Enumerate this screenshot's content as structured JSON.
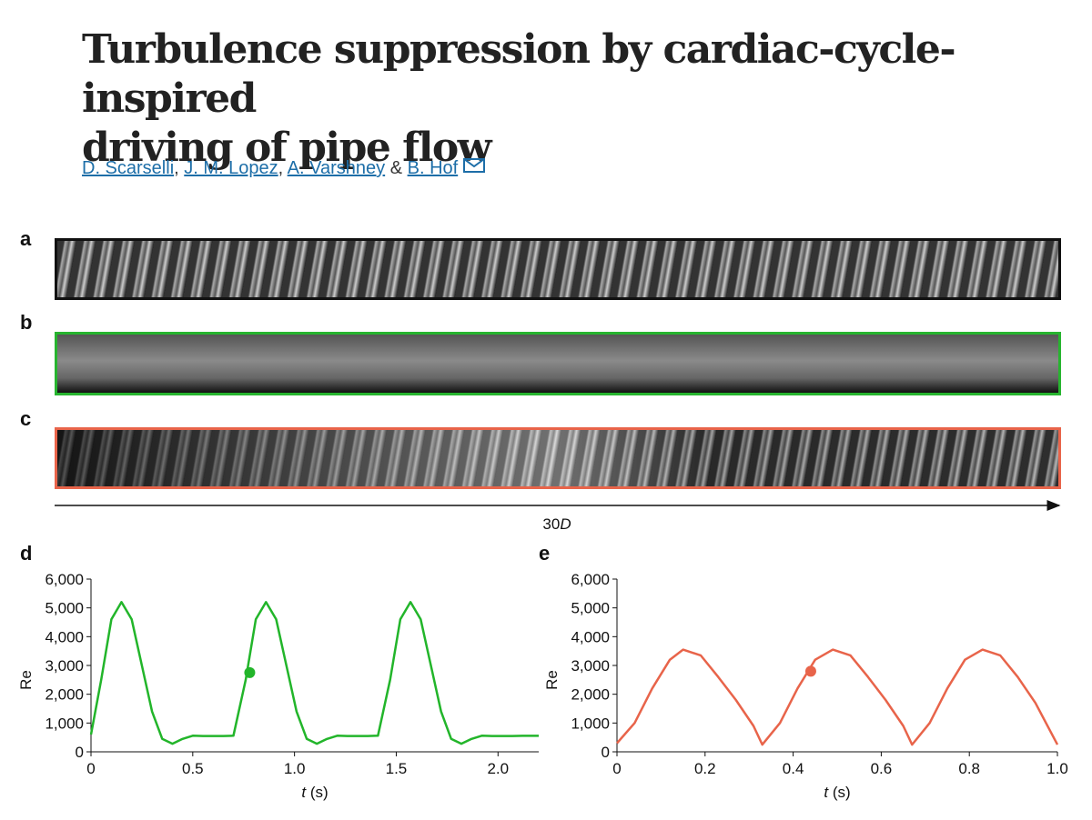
{
  "header": {
    "title_lines": [
      "Turbulence suppression by cardiac-cycle-inspired",
      "driving of pipe flow"
    ],
    "authors": [
      "D. Scarselli",
      "J. M. Lopez",
      "A. Varshney",
      "B. Hof"
    ],
    "separator": ",",
    "conjunction": "&"
  },
  "panels": [
    {
      "label": "a"
    },
    {
      "label": "b"
    },
    {
      "label": "c"
    }
  ],
  "scale_label": {
    "number": "30",
    "unit": "D"
  },
  "chart_data": [
    {
      "type": "line",
      "panel_label": "d",
      "ylabel": "Re",
      "xlabel": {
        "var": "t",
        "unit": "(s)"
      },
      "color": "#22b52a",
      "xlim": [
        0,
        2.2
      ],
      "xticks": [
        0,
        0.5,
        {
          "value": 1,
          "label": "1.0"
        },
        1.5,
        {
          "value": 2,
          "label": "2.0"
        }
      ],
      "ylim": [
        0,
        6000
      ],
      "yticks": [
        0,
        {
          "value": 1000,
          "label": "1,000"
        },
        {
          "value": 2000,
          "label": "2,000"
        },
        {
          "value": 3000,
          "label": "3,000"
        },
        {
          "value": 4000,
          "label": "4,000"
        },
        {
          "value": 5000,
          "label": "5,000"
        },
        {
          "value": 6000,
          "label": "6,000"
        }
      ],
      "x": [
        0,
        0.05,
        0.1,
        0.15,
        0.2,
        0.25,
        0.3,
        0.35,
        0.4,
        0.45,
        0.5,
        0.55,
        0.6,
        0.65,
        0.7,
        0.76,
        0.81,
        0.86,
        0.91,
        0.96,
        1.01,
        1.06,
        1.11,
        1.16,
        1.21,
        1.26,
        1.31,
        1.36,
        1.41,
        1.47,
        1.52,
        1.57,
        1.62,
        1.67,
        1.72,
        1.77,
        1.82,
        1.87,
        1.92,
        1.97,
        2.02,
        2.07,
        2.12,
        2.2
      ],
      "values": [
        600,
        2500,
        4600,
        5200,
        4600,
        3000,
        1400,
        450,
        280,
        450,
        560,
        550,
        550,
        550,
        560,
        2500,
        4600,
        5200,
        4600,
        3000,
        1400,
        450,
        280,
        450,
        560,
        550,
        550,
        550,
        560,
        2500,
        4600,
        5200,
        4600,
        3000,
        1400,
        450,
        280,
        450,
        560,
        550,
        550,
        550,
        555,
        555
      ],
      "marker": {
        "x": 0.78,
        "y": 2750
      }
    },
    {
      "type": "line",
      "panel_label": "e",
      "ylabel": "Re",
      "xlabel": {
        "var": "t",
        "unit": "(s)"
      },
      "color": "#e8644a",
      "xlim": [
        0,
        1
      ],
      "xticks": [
        0,
        0.2,
        0.4,
        0.6,
        0.8,
        {
          "value": 1,
          "label": "1.0"
        }
      ],
      "ylim": [
        0,
        6000
      ],
      "yticks": [
        0,
        {
          "value": 1000,
          "label": "1,000"
        },
        {
          "value": 2000,
          "label": "2,000"
        },
        {
          "value": 3000,
          "label": "3,000"
        },
        {
          "value": 4000,
          "label": "4,000"
        },
        {
          "value": 5000,
          "label": "5,000"
        },
        {
          "value": 6000,
          "label": "6,000"
        }
      ],
      "x": [
        0,
        0.04,
        0.08,
        0.12,
        0.15,
        0.19,
        0.23,
        0.27,
        0.31,
        0.33,
        0.37,
        0.41,
        0.45,
        0.49,
        0.53,
        0.57,
        0.61,
        0.65,
        0.67,
        0.71,
        0.75,
        0.79,
        0.83,
        0.87,
        0.91,
        0.95,
        1
      ],
      "values": [
        300,
        1000,
        2200,
        3200,
        3550,
        3350,
        2600,
        1800,
        900,
        250,
        1000,
        2200,
        3200,
        3550,
        3350,
        2600,
        1800,
        900,
        250,
        1000,
        2200,
        3200,
        3550,
        3350,
        2600,
        1700,
        250
      ],
      "marker": {
        "x": 0.44,
        "y": 2800
      }
    }
  ]
}
